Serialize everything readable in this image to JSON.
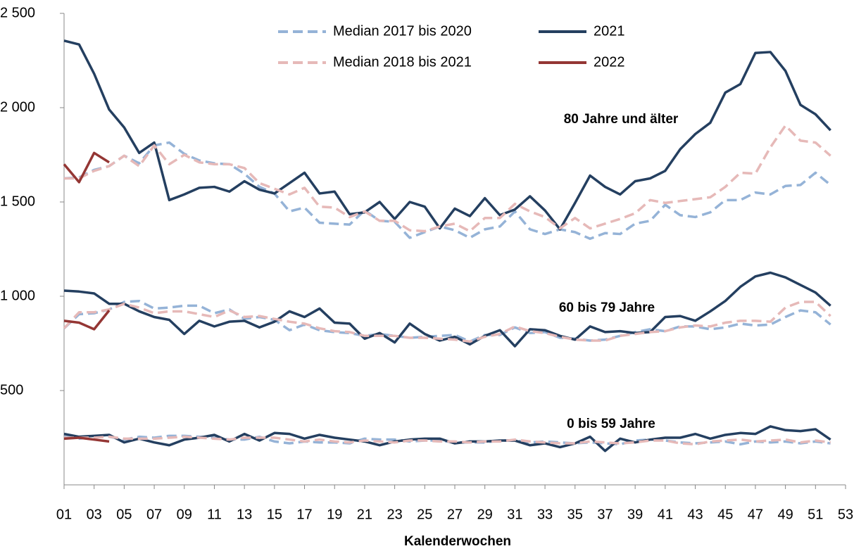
{
  "chart_data": {
    "type": "line",
    "xlabel": "Kalenderwochen",
    "groups": [
      "80 Jahre und älter",
      "60 bis 79 Jahre",
      "0 bis 59 Jahre"
    ],
    "x": [
      1,
      2,
      3,
      4,
      5,
      6,
      7,
      8,
      9,
      10,
      11,
      12,
      13,
      14,
      15,
      16,
      17,
      18,
      19,
      20,
      21,
      22,
      23,
      24,
      25,
      26,
      27,
      28,
      29,
      30,
      31,
      32,
      33,
      34,
      35,
      36,
      37,
      38,
      39,
      40,
      41,
      42,
      43,
      44,
      45,
      46,
      47,
      48,
      49,
      50,
      51,
      52
    ],
    "xlim": [
      1,
      53
    ],
    "xticks": [
      {
        "value": 1,
        "label": "01"
      },
      {
        "value": 3,
        "label": "03"
      },
      {
        "value": 5,
        "label": "05"
      },
      {
        "value": 7,
        "label": "07"
      },
      {
        "value": 9,
        "label": "09"
      },
      11,
      13,
      15,
      17,
      19,
      21,
      23,
      25,
      27,
      29,
      31,
      33,
      35,
      37,
      39,
      41,
      43,
      45,
      47,
      49,
      51,
      53
    ],
    "ylim": [
      0,
      2500
    ],
    "yticks": [
      500,
      {
        "value": 1000,
        "label": "1 000"
      },
      {
        "value": 1500,
        "label": "1 500"
      },
      {
        "value": 2000,
        "label": "2 000"
      },
      {
        "value": 2500,
        "label": "2 500"
      }
    ],
    "series": [
      {
        "name": "Median 2017 bis 2020",
        "color": "#95b3d7",
        "dashed": true,
        "values": [
          [
            1625,
            1630,
            1670,
            1690,
            1745,
            1705,
            1800,
            1815,
            1755,
            1720,
            1705,
            1700,
            1650,
            1580,
            1545,
            1450,
            1470,
            1390,
            1385,
            1380,
            1455,
            1400,
            1395,
            1310,
            1340,
            1370,
            1350,
            1310,
            1355,
            1370,
            1450,
            1355,
            1330,
            1355,
            1340,
            1305,
            1335,
            1330,
            1385,
            1400,
            1485,
            1430,
            1420,
            1445,
            1510,
            1510,
            1550,
            1540,
            1585,
            1590,
            1655,
            1590
          ],
          [
            830,
            905,
            910,
            930,
            970,
            975,
            935,
            940,
            950,
            950,
            910,
            930,
            880,
            890,
            875,
            820,
            850,
            820,
            810,
            805,
            790,
            800,
            790,
            780,
            785,
            790,
            795,
            760,
            795,
            795,
            835,
            805,
            810,
            780,
            775,
            765,
            770,
            790,
            810,
            825,
            815,
            840,
            840,
            825,
            835,
            855,
            845,
            850,
            890,
            925,
            915,
            850
          ],
          [
            255,
            245,
            255,
            255,
            240,
            255,
            250,
            260,
            260,
            255,
            250,
            240,
            240,
            255,
            230,
            220,
            230,
            225,
            225,
            220,
            245,
            240,
            240,
            230,
            235,
            235,
            225,
            225,
            225,
            235,
            235,
            225,
            230,
            225,
            220,
            225,
            220,
            215,
            235,
            240,
            235,
            225,
            220,
            225,
            230,
            215,
            230,
            225,
            230,
            220,
            230,
            220
          ]
        ]
      },
      {
        "name": "2021",
        "color": "#243f60",
        "dashed": false,
        "values": [
          [
            2355,
            2335,
            2180,
            1990,
            1895,
            1760,
            1815,
            1510,
            1540,
            1575,
            1580,
            1555,
            1610,
            1565,
            1545,
            1600,
            1655,
            1545,
            1555,
            1435,
            1445,
            1500,
            1410,
            1500,
            1475,
            1360,
            1465,
            1425,
            1520,
            1430,
            1460,
            1530,
            1455,
            1355,
            1495,
            1640,
            1580,
            1540,
            1610,
            1625,
            1665,
            1780,
            1860,
            1920,
            2080,
            2125,
            2290,
            2295,
            2195,
            2015,
            1965,
            1880
          ],
          [
            1030,
            1025,
            1015,
            960,
            960,
            920,
            890,
            875,
            800,
            870,
            840,
            865,
            870,
            835,
            865,
            920,
            890,
            935,
            860,
            855,
            775,
            805,
            755,
            855,
            800,
            765,
            785,
            745,
            790,
            820,
            735,
            825,
            820,
            790,
            770,
            840,
            810,
            815,
            805,
            810,
            890,
            895,
            870,
            920,
            975,
            1050,
            1105,
            1125,
            1100,
            1060,
            1020,
            950
          ],
          [
            270,
            255,
            260,
            265,
            225,
            245,
            225,
            210,
            240,
            250,
            265,
            230,
            270,
            235,
            275,
            270,
            245,
            265,
            250,
            240,
            230,
            210,
            230,
            240,
            245,
            245,
            220,
            230,
            230,
            235,
            235,
            210,
            220,
            200,
            220,
            255,
            180,
            245,
            225,
            240,
            250,
            250,
            270,
            245,
            265,
            275,
            270,
            310,
            290,
            285,
            295,
            240
          ]
        ]
      },
      {
        "name": "Median 2018 bis 2021",
        "color": "#e6b9b8",
        "dashed": true,
        "values": [
          [
            1625,
            1625,
            1665,
            1690,
            1745,
            1690,
            1800,
            1700,
            1750,
            1710,
            1700,
            1700,
            1680,
            1600,
            1570,
            1540,
            1575,
            1475,
            1470,
            1420,
            1450,
            1400,
            1400,
            1350,
            1345,
            1370,
            1385,
            1345,
            1415,
            1415,
            1490,
            1450,
            1420,
            1360,
            1415,
            1360,
            1385,
            1410,
            1440,
            1510,
            1495,
            1505,
            1515,
            1525,
            1580,
            1655,
            1650,
            1790,
            1905,
            1825,
            1815,
            1745
          ],
          [
            830,
            915,
            915,
            930,
            960,
            940,
            910,
            920,
            920,
            905,
            890,
            925,
            890,
            895,
            880,
            865,
            855,
            830,
            815,
            810,
            790,
            790,
            790,
            780,
            780,
            775,
            770,
            760,
            785,
            800,
            840,
            815,
            805,
            785,
            770,
            765,
            765,
            790,
            800,
            810,
            815,
            835,
            845,
            840,
            860,
            870,
            870,
            865,
            940,
            970,
            970,
            895
          ],
          [
            250,
            250,
            250,
            255,
            245,
            245,
            245,
            250,
            255,
            250,
            245,
            240,
            250,
            250,
            250,
            240,
            230,
            240,
            230,
            225,
            235,
            230,
            225,
            235,
            235,
            230,
            230,
            225,
            230,
            230,
            240,
            230,
            225,
            220,
            220,
            230,
            225,
            220,
            225,
            235,
            235,
            220,
            215,
            230,
            235,
            240,
            230,
            235,
            240,
            225,
            235,
            225
          ]
        ]
      },
      {
        "name": "2022",
        "color": "#943634",
        "dashed": false,
        "values": [
          [
            1700,
            1605,
            1760,
            1710,
            null,
            null,
            null,
            null,
            null,
            null,
            null,
            null,
            null,
            null,
            null,
            null,
            null,
            null,
            null,
            null,
            null,
            null,
            null,
            null,
            null,
            null,
            null,
            null,
            null,
            null,
            null,
            null,
            null,
            null,
            null,
            null,
            null,
            null,
            null,
            null,
            null,
            null,
            null,
            null,
            null,
            null,
            null,
            null,
            null,
            null,
            null,
            null
          ],
          [
            870,
            860,
            825,
            925,
            null,
            null,
            null,
            null,
            null,
            null,
            null,
            null,
            null,
            null,
            null,
            null,
            null,
            null,
            null,
            null,
            null,
            null,
            null,
            null,
            null,
            null,
            null,
            null,
            null,
            null,
            null,
            null,
            null,
            null,
            null,
            null,
            null,
            null,
            null,
            null,
            null,
            null,
            null,
            null,
            null,
            null,
            null,
            null,
            null,
            null,
            null,
            null
          ],
          [
            245,
            250,
            240,
            230,
            null,
            null,
            null,
            null,
            null,
            null,
            null,
            null,
            null,
            null,
            null,
            null,
            null,
            null,
            null,
            null,
            null,
            null,
            null,
            null,
            null,
            null,
            null,
            null,
            null,
            null,
            null,
            null,
            null,
            null,
            null,
            null,
            null,
            null,
            null,
            null,
            null,
            null,
            null,
            null,
            null,
            null,
            null,
            null,
            null,
            null,
            null,
            null
          ]
        ]
      }
    ]
  }
}
